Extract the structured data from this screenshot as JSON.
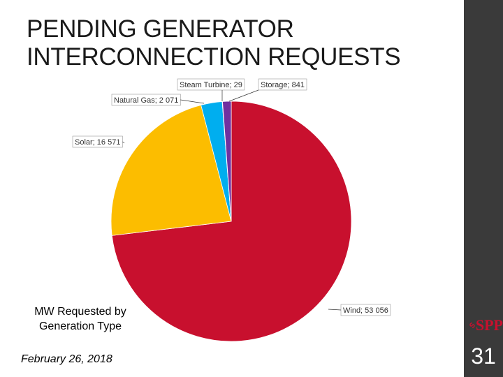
{
  "slide": {
    "title_line1": "PENDING GENERATOR",
    "title_line2": "INTERCONNECTION REQUESTS",
    "caption_line1": "MW Requested by",
    "caption_line2": "Generation Type",
    "date": "February 26, 2018",
    "page_number": "31",
    "logo_text": "SPP"
  },
  "colors": {
    "wind": "#c8102e",
    "solar": "#fcbd00",
    "natural_gas": "#00aeef",
    "steam_turbine": "#6b2fa0",
    "storage": "#7030a0",
    "sidebar": "#3a3a3a",
    "logo": "#c8102e"
  },
  "chart_data": {
    "type": "pie",
    "slices": [
      {
        "label": "Wind; 53 056",
        "value": 53056,
        "color": "#c8102e"
      },
      {
        "label": "Solar; 16 571",
        "value": 16571,
        "color": "#fcbd00"
      },
      {
        "label": "Natural Gas; 2 071",
        "value": 2071,
        "color": "#00aeef"
      },
      {
        "label": "Steam Turbine; 29",
        "value": 29,
        "color": "#4a4a8a"
      },
      {
        "label": "Storage; 841",
        "value": 841,
        "color": "#7030a0"
      }
    ]
  }
}
